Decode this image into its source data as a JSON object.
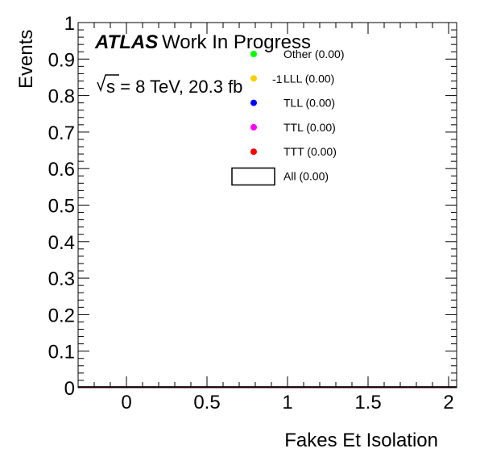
{
  "chart_data": {
    "type": "line",
    "title": "",
    "xlabel": "Fakes Et Isolation",
    "ylabel": "Events",
    "xlim": [
      -0.3,
      2.05
    ],
    "ylim": [
      0,
      1
    ],
    "x_ticks": [
      0,
      0.5,
      1,
      1.5,
      2
    ],
    "x_tick_labels": [
      "0",
      "0.5",
      "1",
      "1.5",
      "2"
    ],
    "y_ticks": [
      0,
      0.1,
      0.2,
      0.3,
      0.4,
      0.5,
      0.6,
      0.7,
      0.8,
      0.9,
      1
    ],
    "y_tick_labels": [
      "0",
      "0.1",
      "0.2",
      "0.3",
      "0.4",
      "0.5",
      "0.6",
      "0.7",
      "0.8",
      "0.9",
      "1"
    ],
    "grid": false,
    "legend_position": "top-right",
    "annotations": {
      "experiment": "ATLAS",
      "status": "Work In Progress",
      "lumi_prefix": "s = 8 TeV, 20.3 fb",
      "lumi_exp": "-1"
    },
    "series": [
      {
        "name": "Other (0.00)",
        "color": "#00ff00",
        "marker": "dot",
        "x": [
          -0.3,
          2.05
        ],
        "values": [
          0,
          0
        ]
      },
      {
        "name": "LLL (0.00)",
        "color": "#ffcc00",
        "marker": "dot",
        "x": [
          -0.3,
          2.05
        ],
        "values": [
          0,
          0
        ]
      },
      {
        "name": "TLL (0.00)",
        "color": "#0000ff",
        "marker": "dot",
        "x": [
          -0.3,
          2.05
        ],
        "values": [
          0,
          0
        ]
      },
      {
        "name": "TTL (0.00)",
        "color": "#ff00ff",
        "marker": "dot",
        "x": [
          -0.3,
          2.05
        ],
        "values": [
          0,
          0
        ]
      },
      {
        "name": "TTT (0.00)",
        "color": "#ff0000",
        "marker": "dot",
        "x": [
          -0.3,
          2.05
        ],
        "values": [
          0,
          0
        ]
      },
      {
        "name": "All (0.00)",
        "color": "#000000",
        "marker": "box",
        "x": [
          -0.3,
          2.05
        ],
        "values": [
          0,
          0
        ]
      }
    ]
  }
}
